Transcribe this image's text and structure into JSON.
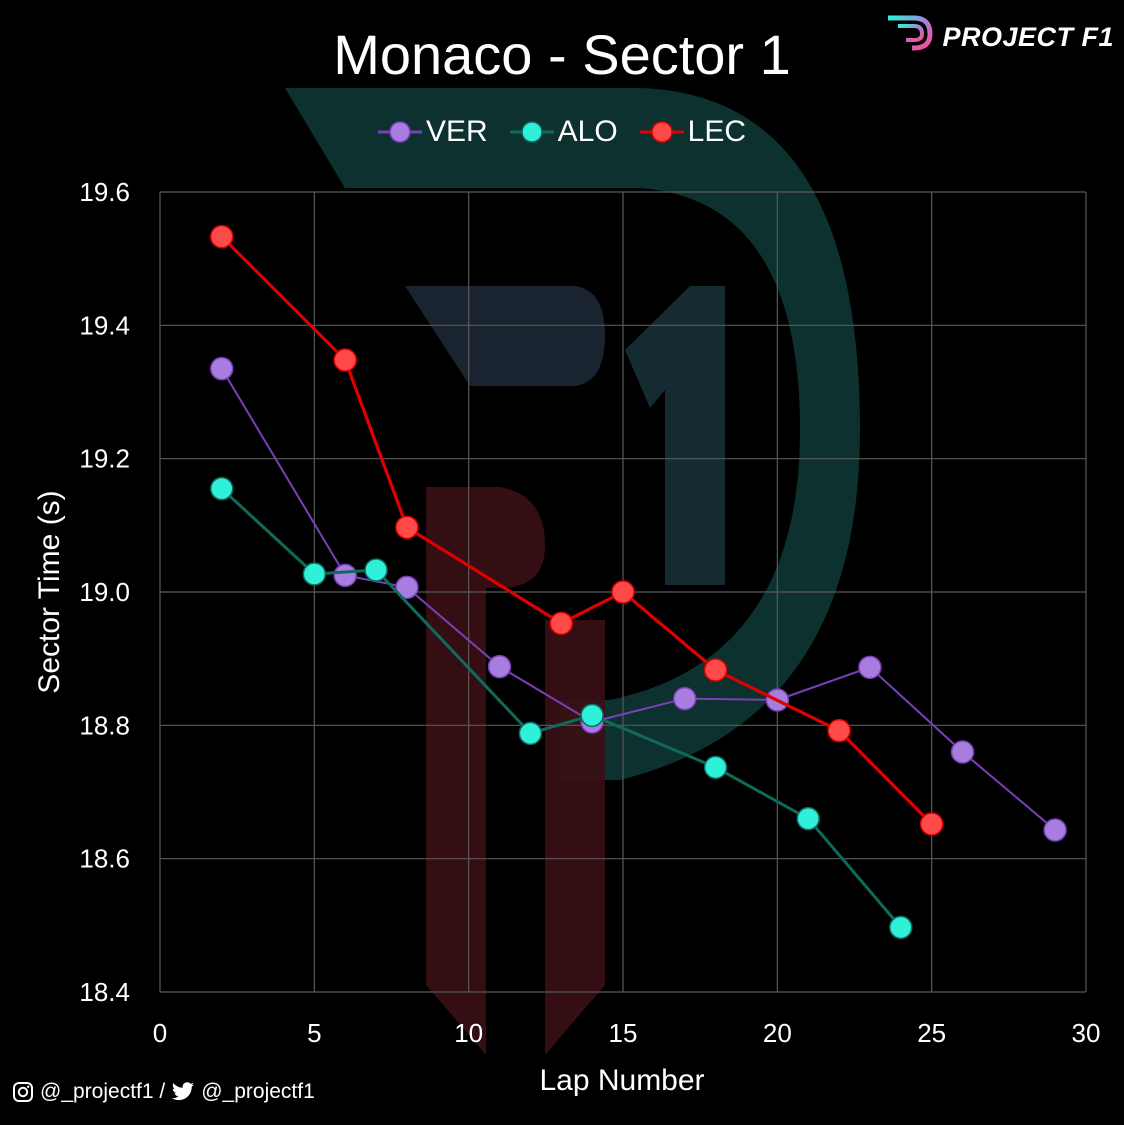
{
  "header": {
    "brand": "PROJECT F1",
    "footer_instagram": "@_projectf1 /",
    "footer_twitter": "@_projectf1"
  },
  "colors": {
    "background": "#000000",
    "grid": "#595959",
    "VER": "#a77ee0",
    "VER_line": "#7a3fb8",
    "ALO": "#2ff0d8",
    "ALO_line": "#0e6a5c",
    "LEC": "#ff4a4a",
    "LEC_line": "#e00000",
    "watermark_teal": "#0e3a36",
    "watermark_red": "#3a1014"
  },
  "chart_data": {
    "type": "line",
    "title": "Monaco - Sector 1",
    "xlabel": "Lap Number",
    "ylabel": "Sector Time (s)",
    "xlim": [
      0,
      30
    ],
    "ylim": [
      18.4,
      19.6
    ],
    "xticks": [
      "0",
      "5",
      "10",
      "15",
      "20",
      "25",
      "30"
    ],
    "yticks": [
      "18.4",
      "18.6",
      "18.8",
      "19.0",
      "19.2",
      "19.4",
      "19.6"
    ],
    "grid": true,
    "legend_position": "top-center",
    "series": [
      {
        "name": "VER",
        "points": [
          [
            2,
            19.335
          ],
          [
            6,
            19.025
          ],
          [
            8,
            19.007
          ],
          [
            11,
            18.888
          ],
          [
            14,
            18.805
          ],
          [
            17,
            18.84
          ],
          [
            20,
            18.838
          ],
          [
            23,
            18.887
          ],
          [
            26,
            18.76
          ],
          [
            29,
            18.643
          ]
        ]
      },
      {
        "name": "ALO",
        "points": [
          [
            2,
            19.155
          ],
          [
            5,
            19.027
          ],
          [
            7,
            19.033
          ],
          [
            12,
            18.788
          ],
          [
            14,
            18.815
          ],
          [
            18,
            18.737
          ],
          [
            21,
            18.66
          ],
          [
            24,
            18.497
          ]
        ]
      },
      {
        "name": "LEC",
        "points": [
          [
            2,
            19.533
          ],
          [
            6,
            19.348
          ],
          [
            8,
            19.097
          ],
          [
            13,
            18.953
          ],
          [
            15,
            19.0
          ],
          [
            18,
            18.883
          ],
          [
            22,
            18.792
          ],
          [
            25,
            18.652
          ]
        ]
      }
    ]
  }
}
